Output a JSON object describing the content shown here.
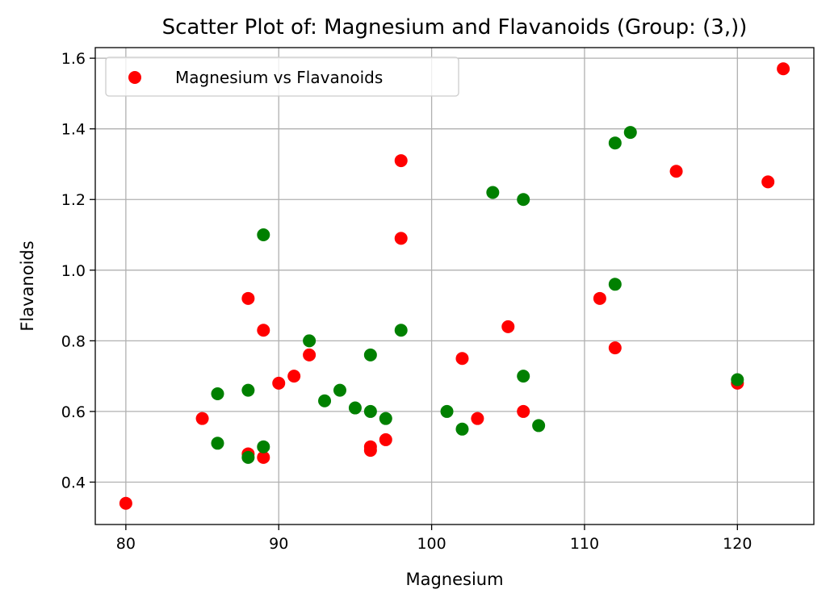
{
  "chart_data": {
    "type": "scatter",
    "title": "Scatter Plot of: Magnesium and Flavanoids (Group: (3,))",
    "xlabel": "Magnesium",
    "ylabel": "Flavanoids",
    "xlim": [
      78,
      125
    ],
    "ylim": [
      0.28,
      1.63
    ],
    "xticks": [
      80,
      90,
      100,
      110,
      120
    ],
    "yticks": [
      0.4,
      0.6,
      0.8,
      1.0,
      1.2,
      1.4,
      1.6
    ],
    "xtick_labels": [
      "80",
      "90",
      "100",
      "110",
      "120"
    ],
    "ytick_labels": [
      "0.4",
      "0.6",
      "0.8",
      "1.0",
      "1.2",
      "1.4",
      "1.6"
    ],
    "grid": true,
    "legend_position": "upper-left",
    "series": [
      {
        "name": "Magnesium vs Flavanoids",
        "color": "#ff0000",
        "points": [
          [
            80,
            0.34
          ],
          [
            85,
            0.58
          ],
          [
            88,
            0.92
          ],
          [
            88,
            0.48
          ],
          [
            89,
            0.83
          ],
          [
            89,
            0.47
          ],
          [
            90,
            0.68
          ],
          [
            91,
            0.7
          ],
          [
            92,
            0.76
          ],
          [
            96,
            0.5
          ],
          [
            96,
            0.49
          ],
          [
            97,
            0.52
          ],
          [
            98,
            1.31
          ],
          [
            98,
            1.09
          ],
          [
            102,
            0.75
          ],
          [
            103,
            0.58
          ],
          [
            105,
            0.84
          ],
          [
            106,
            0.6
          ],
          [
            111,
            0.92
          ],
          [
            112,
            0.78
          ],
          [
            116,
            1.28
          ],
          [
            120,
            0.68
          ],
          [
            122,
            1.25
          ],
          [
            123,
            1.57
          ]
        ]
      },
      {
        "color": "#008000",
        "points": [
          [
            86,
            0.65
          ],
          [
            86,
            0.51
          ],
          [
            88,
            0.66
          ],
          [
            88,
            0.47
          ],
          [
            89,
            1.1
          ],
          [
            89,
            0.5
          ],
          [
            92,
            0.8
          ],
          [
            93,
            0.63
          ],
          [
            94,
            0.66
          ],
          [
            95,
            0.61
          ],
          [
            96,
            0.76
          ],
          [
            96,
            0.6
          ],
          [
            97,
            0.58
          ],
          [
            98,
            0.83
          ],
          [
            101,
            0.6
          ],
          [
            102,
            0.55
          ],
          [
            104,
            1.22
          ],
          [
            106,
            1.2
          ],
          [
            106,
            0.7
          ],
          [
            107,
            0.56
          ],
          [
            112,
            1.36
          ],
          [
            112,
            0.96
          ],
          [
            113,
            1.39
          ],
          [
            120,
            0.69
          ]
        ]
      }
    ]
  }
}
